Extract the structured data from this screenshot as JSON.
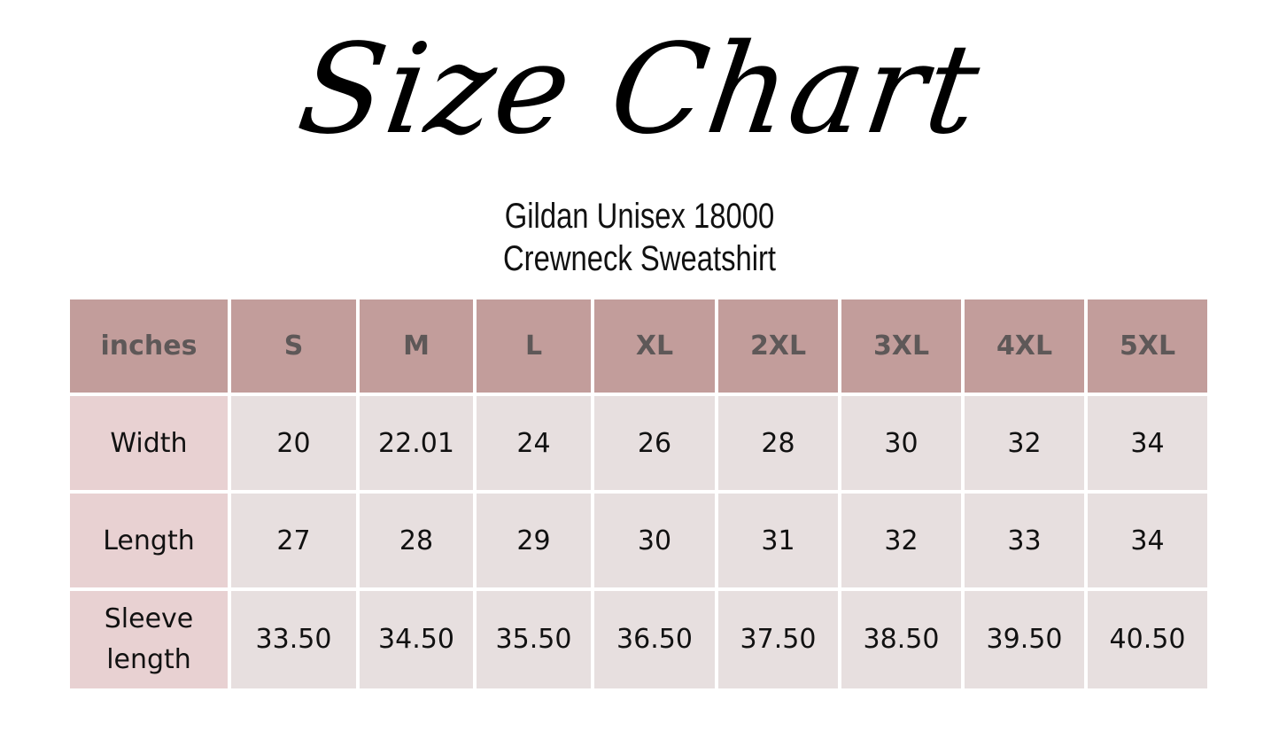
{
  "title": "Size Chart",
  "subtitle_line1": "Gildan Unisex 18000",
  "subtitle_line2": "Crewneck Sweatshirt",
  "colors": {
    "header": "#c29d9b",
    "row_label": "#e8d1d2",
    "cell": "#e7dfdf",
    "header_text": "#5e5858"
  },
  "table": {
    "headers": [
      "inches",
      "S",
      "M",
      "L",
      "XL",
      "2XL",
      "3XL",
      "4XL",
      "5XL"
    ],
    "rows": [
      {
        "label": "Width",
        "values": [
          "20",
          "22.01",
          "24",
          "26",
          "28",
          "30",
          "32",
          "34"
        ]
      },
      {
        "label": "Length",
        "values": [
          "27",
          "28",
          "29",
          "30",
          "31",
          "32",
          "33",
          "34"
        ]
      },
      {
        "label": "Sleeve length",
        "values": [
          "33.50",
          "34.50",
          "35.50",
          "36.50",
          "37.50",
          "38.50",
          "39.50",
          "40.50"
        ]
      }
    ]
  }
}
